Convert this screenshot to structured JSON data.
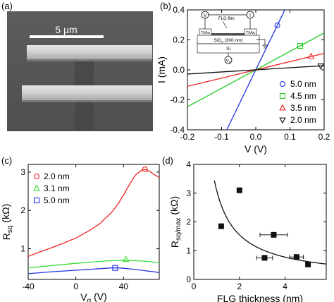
{
  "panels": {
    "a": {
      "label": "(a)",
      "scalebar_label": "5 µm"
    },
    "b": {
      "label": "(b)",
      "inset": {
        "film_label": "FLG film",
        "v_label": "V",
        "i_label": "I",
        "vg_label": "V",
        "vg_sub": "g",
        "electrode_left": "Ti/Au",
        "electrode_right": "Ti/Au",
        "oxide_label": "SiO",
        "oxide_sub": "2",
        "oxide_suffix": " (300 nm)",
        "substrate_label": "Si"
      }
    },
    "c": {
      "label": "(c)"
    },
    "d": {
      "label": "(d)"
    }
  },
  "chart_data": [
    {
      "panel": "b",
      "type": "line",
      "xlabel": "V (V)",
      "ylabel": "I (mA)",
      "xlim": [
        -0.2,
        0.2
      ],
      "ylim": [
        -0.4,
        0.4
      ],
      "xticks": [
        -0.2,
        -0.1,
        0.0,
        0.1,
        0.2
      ],
      "xtick_labels": [
        "-0.2",
        "-0.1",
        "0.0",
        "0.1",
        "0.2"
      ],
      "yticks": [
        -0.4,
        -0.2,
        0.0,
        0.2,
        0.4
      ],
      "ytick_labels": [
        "-0.4",
        "-0.2",
        "0.0",
        "0.2",
        "0.4"
      ],
      "grid": false,
      "legend_position": "bottom-right",
      "series": [
        {
          "name": "5.0 nm",
          "slope": 4.71,
          "color": "#2233dd",
          "marker": "circle",
          "marker_x": 0.063
        },
        {
          "name": "4.5 nm",
          "slope": 1.23,
          "color": "#22cc22",
          "marker": "square",
          "marker_x": 0.13
        },
        {
          "name": "3.5 nm",
          "slope": 0.55,
          "color": "#ee2222",
          "marker": "triangle-up",
          "marker_x": 0.162
        },
        {
          "name": "2.0 nm",
          "slope": 0.14,
          "color": "#111111",
          "marker": "triangle-down",
          "marker_x": 0.19
        }
      ]
    },
    {
      "panel": "c",
      "type": "line",
      "xlabel": "V",
      "xlabel_sub": "g",
      "xlabel_suffix": " (V)",
      "ylabel": "R",
      "ylabel_sub": "sq",
      "ylabel_suffix": " (kΩ)",
      "xlim": [
        -40,
        70
      ],
      "ylim": [
        0.2,
        3.2
      ],
      "xticks": [
        -40,
        0,
        40
      ],
      "xtick_labels": [
        "-40",
        "0",
        "40"
      ],
      "yticks": [
        1,
        2,
        3
      ],
      "ytick_labels": [
        "1",
        "2",
        "3"
      ],
      "grid": false,
      "legend_position": "top-left",
      "series": [
        {
          "name": "2.0 nm",
          "color": "#ee2222",
          "marker": "circle",
          "x": [
            -40,
            -30,
            -20,
            -10,
            0,
            10,
            20,
            30,
            35,
            40,
            45,
            50,
            55,
            58,
            62,
            66,
            70
          ],
          "y": [
            0.8,
            0.92,
            1.03,
            1.15,
            1.28,
            1.45,
            1.65,
            1.95,
            2.15,
            2.4,
            2.68,
            2.92,
            3.05,
            3.07,
            3.02,
            2.93,
            2.86
          ],
          "marker_x": 58,
          "marker_y": 3.07
        },
        {
          "name": "3.1 nm",
          "color": "#33dd33",
          "marker": "triangle-up",
          "x": [
            -40,
            -20,
            0,
            20,
            30,
            40,
            45,
            50,
            60,
            70
          ],
          "y": [
            0.5,
            0.56,
            0.62,
            0.67,
            0.69,
            0.7,
            0.7,
            0.69,
            0.67,
            0.64
          ],
          "marker_x": 42,
          "marker_y": 0.72
        },
        {
          "name": "5.0 nm",
          "color": "#2233dd",
          "marker": "square",
          "x": [
            -40,
            -20,
            0,
            20,
            30,
            35,
            40,
            50,
            60,
            70
          ],
          "y": [
            0.35,
            0.4,
            0.44,
            0.48,
            0.5,
            0.5,
            0.49,
            0.46,
            0.42,
            0.38
          ],
          "marker_x": 33,
          "marker_y": 0.5
        }
      ]
    },
    {
      "panel": "d",
      "type": "scatter",
      "xlabel": "FLG thickness (nm)",
      "ylabel": "R",
      "ylabel_sub": "sq/max",
      "ylabel_suffix": " (kΩ)",
      "xlim": [
        0,
        5.8
      ],
      "ylim": [
        0,
        4
      ],
      "xticks": [
        0,
        2,
        4
      ],
      "xtick_labels": [
        "0",
        "2",
        "4"
      ],
      "yticks": [
        0,
        1,
        2,
        3,
        4
      ],
      "ytick_labels": [
        "0",
        "1",
        "2",
        "3",
        "4"
      ],
      "grid": false,
      "points": [
        {
          "x": 2.0,
          "y": 3.1,
          "xerr": 0.0
        },
        {
          "x": 1.2,
          "y": 1.85,
          "xerr": 0.0
        },
        {
          "x": 3.5,
          "y": 1.55,
          "xerr": 0.6
        },
        {
          "x": 3.1,
          "y": 0.75,
          "xerr": 0.35
        },
        {
          "x": 4.5,
          "y": 0.78,
          "xerr": 0.3
        },
        {
          "x": 5.0,
          "y": 0.52,
          "xerr": 0.0
        }
      ],
      "fit": {
        "type": "inverse",
        "a": 3.1,
        "x_start": 0.9,
        "x_end": 5.8,
        "color": "#111111"
      }
    }
  ]
}
